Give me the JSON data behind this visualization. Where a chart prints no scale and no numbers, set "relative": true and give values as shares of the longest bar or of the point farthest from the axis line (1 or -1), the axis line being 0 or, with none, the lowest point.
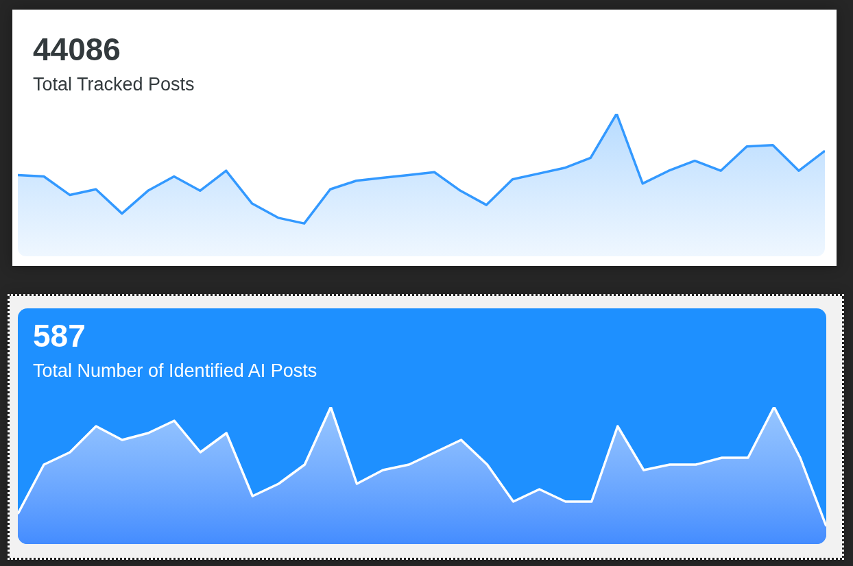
{
  "chart_data": [
    {
      "type": "area",
      "title": "44086",
      "subtitle": "Total Tracked Posts",
      "relative": true,
      "categories": [
        null,
        null,
        null,
        null,
        null,
        null,
        null,
        null,
        null,
        null,
        null,
        null,
        null,
        null,
        null,
        null,
        null,
        null,
        null,
        null,
        null,
        null,
        null,
        null,
        null,
        null,
        null,
        null,
        null,
        null,
        null,
        null
      ],
      "series": [
        {
          "color": "#3399ff",
          "values": [
            0.57,
            0.56,
            0.43,
            0.47,
            0.3,
            0.46,
            0.56,
            0.46,
            0.6,
            0.37,
            0.27,
            0.23,
            0.47,
            0.53,
            0.55,
            0.57,
            0.59,
            0.46,
            0.36,
            0.54,
            0.58,
            0.62,
            0.69,
            1,
            0.51,
            0.6,
            0.67,
            0.6,
            0.77,
            0.78,
            0.6,
            0.74
          ]
        }
      ]
    },
    {
      "type": "area",
      "title": "587",
      "subtitle": "Total Number of Identified AI Posts",
      "relative": true,
      "categories": [
        null,
        null,
        null,
        null,
        null,
        null,
        null,
        null,
        null,
        null,
        null,
        null,
        null,
        null,
        null,
        null,
        null,
        null,
        null,
        null,
        null,
        null,
        null,
        null,
        null,
        null,
        null,
        null,
        null,
        null,
        null,
        null
      ],
      "series": [
        {
          "color": "#ffffff",
          "values": [
            0.22,
            0.58,
            0.67,
            0.86,
            0.76,
            0.81,
            0.9,
            0.67,
            0.81,
            0.35,
            0.44,
            0.58,
            1,
            0.44,
            0.54,
            0.58,
            0.67,
            0.76,
            0.58,
            0.31,
            0.4,
            0.31,
            0.31,
            0.86,
            0.54,
            0.58,
            0.58,
            0.63,
            0.63,
            1,
            0.63,
            0.13
          ]
        }
      ]
    }
  ]
}
